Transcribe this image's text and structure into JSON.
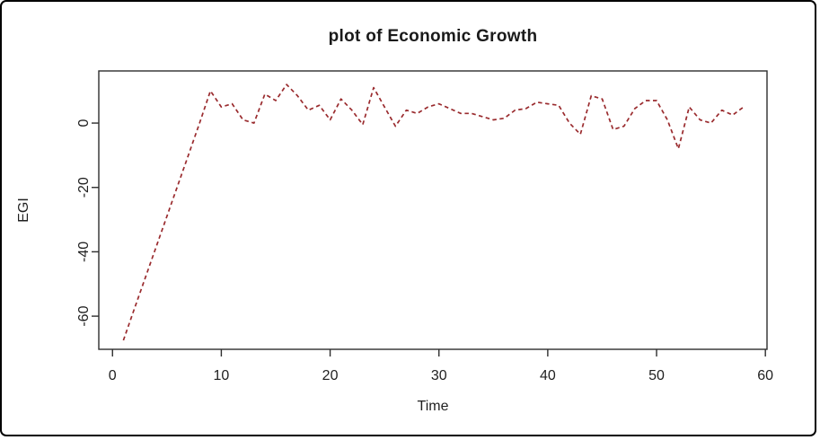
{
  "figure": {
    "background": "#ffffff",
    "frame_color": "#000000"
  },
  "chart_data": {
    "type": "line",
    "title": "plot of Economic Growth",
    "xlabel": "Time",
    "ylabel": "EGI",
    "x_ticks": [
      0,
      10,
      20,
      30,
      40,
      50,
      60
    ],
    "y_ticks": [
      0,
      -20,
      -40,
      -60
    ],
    "xlim": [
      -1.26,
      60.15
    ],
    "ylim": [
      -70.3,
      16.2
    ],
    "grid": false,
    "legend_position": "none",
    "line_style": "dashed",
    "line_color": "#9a2b2e",
    "axis_color": "#2e2e2e",
    "series": [
      {
        "name": "EGI",
        "x_start": 1,
        "x_step": 1,
        "values": [
          -67.5,
          -57.8,
          -48.2,
          -38.6,
          -29,
          -19.3,
          -9.7,
          0,
          10,
          5,
          6,
          1,
          0,
          9,
          7,
          12,
          8.5,
          4,
          5.5,
          1,
          7.5,
          4,
          -0.5,
          11,
          5,
          -1,
          4,
          3,
          5,
          6,
          4.5,
          3,
          3,
          2,
          1,
          1.5,
          4,
          4.5,
          6.5,
          6,
          5.5,
          0,
          -3.5,
          8.5,
          7.5,
          -2,
          -1,
          4.5,
          7,
          7,
          1,
          -8,
          5,
          1,
          0,
          4,
          2.5,
          5
        ]
      }
    ]
  }
}
